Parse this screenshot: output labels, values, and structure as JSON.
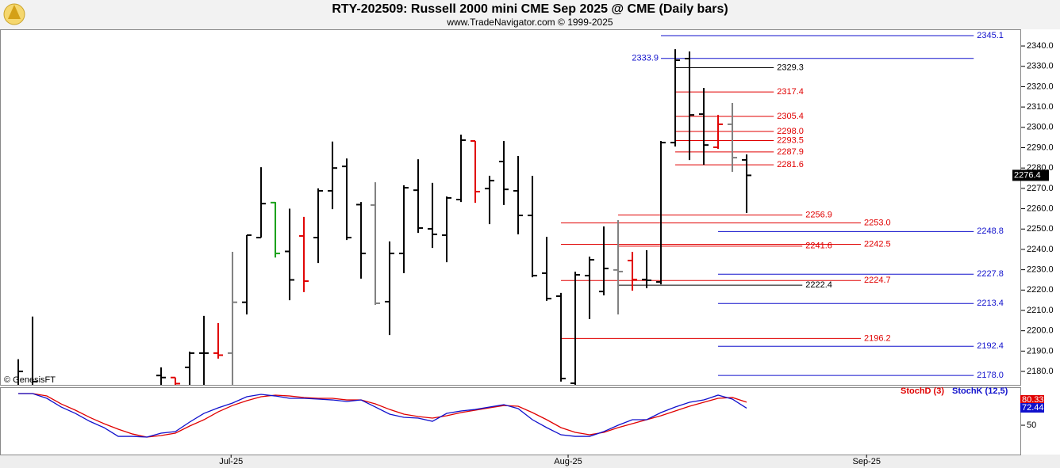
{
  "chart_data": [
    {
      "type": "ohlc",
      "title": "RTY-202509:  Russell 2000 mini CME Sep 2025 @ CME  (Daily bars)",
      "subtitle": "www.TradeNavigator.com © 1999-2025",
      "watermark": "© GenesisFT",
      "x": [
        0,
        1,
        10,
        11,
        12,
        13,
        14,
        15,
        16,
        17,
        18,
        19,
        20,
        21,
        22,
        23,
        24,
        25,
        26,
        27,
        28,
        29,
        30,
        31,
        32,
        33,
        34,
        35,
        36,
        37,
        38,
        39,
        40,
        41,
        42,
        43,
        44,
        45,
        46,
        47,
        48,
        49,
        50,
        51
      ],
      "open": [
        2170,
        2165,
        2178,
        2177,
        2182,
        2189,
        2189,
        2189,
        2214,
        2245.8,
        2263,
        2239,
        2246.6,
        2245.8,
        2268.8,
        2280.8,
        2262,
        2261.8,
        2214.3,
        2238,
        2269.1,
        2250.1,
        2247,
        2264.5,
        2293.3,
        2269.9,
        2283.2,
        2268.8,
        2256.7,
        2228.3,
        2217,
        2174.2,
        2227.1,
        2219.3,
        2229.9,
        2234.5,
        2225.2,
        2224,
        2292.5,
        2333.8,
        2306.5,
        2290.2,
        2301.5,
        2284
      ],
      "high": [
        2186,
        2207,
        2182,
        2177,
        2189.7,
        2207.3,
        2203.8,
        2238.8,
        2247,
        2280.4,
        2263.3,
        2260,
        2256,
        2270,
        2293,
        2284.7,
        2263.3,
        2273,
        2243.9,
        2271.5,
        2284.3,
        2272.7,
        2266,
        2296.4,
        2293.3,
        2276.2,
        2293.3,
        2285.9,
        2276.2,
        2246.2,
        2218.6,
        2229,
        2236.4,
        2251.3,
        2254.4,
        2238.8,
        2239.6,
        2293.3,
        2338.4,
        2337.3,
        2319.4,
        2306.1,
        2312,
        2286.7
      ],
      "low": [
        2165,
        2160,
        2170,
        2170,
        2170,
        2170,
        2186.3,
        2170,
        2208,
        2245.8,
        2236,
        2215,
        2219,
        2233.3,
        2259.8,
        2244.6,
        2225.6,
        2212.7,
        2197.9,
        2228.3,
        2248.1,
        2240.7,
        2233.7,
        2263.3,
        2262.9,
        2252.4,
        2261.8,
        2247.4,
        2226.3,
        2214.7,
        2175,
        2170,
        2205.7,
        2217.4,
        2208,
        2219.7,
        2220.9,
        2222.8,
        2290.6,
        2283.9,
        2281.6,
        2289.4,
        2278.1,
        2257.9
      ],
      "close": [
        2180,
        2175,
        2177,
        2174,
        2189,
        2189,
        2188,
        2214,
        2247,
        2262.5,
        2238,
        2225,
        2224.4,
        2268.8,
        2280,
        2245.8,
        2238,
        2213.5,
        2238,
        2270.3,
        2250.5,
        2247.4,
        2265.3,
        2293.7,
        2268.4,
        2273.8,
        2269.5,
        2256.7,
        2227.1,
        2215.8,
        2176.5,
        2227.5,
        2234.9,
        2230.6,
        2229.1,
        2225.2,
        2224.8,
        2292.5,
        2333,
        2306.1,
        2291.3,
        2301.5,
        2285.1,
        2276.4
      ],
      "colors": [
        "#000000",
        "#000000",
        "#000000",
        "#e00000",
        "#000000",
        "#000000",
        "#e00000",
        "#808080",
        "#000000",
        "#000000",
        "#1aa01a",
        "#000000",
        "#e00000",
        "#000000",
        "#000000",
        "#000000",
        "#000000",
        "#808080",
        "#000000",
        "#000000",
        "#000000",
        "#000000",
        "#000000",
        "#000000",
        "#e00000",
        "#000000",
        "#000000",
        "#000000",
        "#000000",
        "#000000",
        "#000000",
        "#000000",
        "#000000",
        "#000000",
        "#808080",
        "#e00000",
        "#000000",
        "#000000",
        "#000000",
        "#000000",
        "#000000",
        "#e00000",
        "#808080",
        "#000000"
      ],
      "xlim": [
        -1.28,
        70.22
      ],
      "ylim": [
        2173.4,
        2348.2
      ],
      "yticks": [
        {
          "value": 2180,
          "label": "2180.0"
        },
        {
          "value": 2190,
          "label": "2190.0"
        },
        {
          "value": 2200,
          "label": "2200.0"
        },
        {
          "value": 2210,
          "label": "2210.0"
        },
        {
          "value": 2220,
          "label": "2220.0"
        },
        {
          "value": 2230,
          "label": "2230.0"
        },
        {
          "value": 2240,
          "label": "2240.0"
        },
        {
          "value": 2250,
          "label": "2250.0"
        },
        {
          "value": 2260,
          "label": "2260.0"
        },
        {
          "value": 2270,
          "label": "2270.0"
        },
        {
          "value": 2280,
          "label": "2280.0"
        },
        {
          "value": 2290,
          "label": "2290.0"
        },
        {
          "value": 2300,
          "label": "2300.0"
        },
        {
          "value": 2310,
          "label": "2310.0"
        },
        {
          "value": 2320,
          "label": "2320.0"
        },
        {
          "value": 2330,
          "label": "2330.0"
        },
        {
          "value": 2340,
          "label": "2340.0"
        }
      ],
      "levels": [
        {
          "value": 2345.1,
          "label": "2345.1",
          "color": "#1010cc",
          "x0": 45,
          "x1": 66.9
        },
        {
          "value": 2333.9,
          "label": "2333.9",
          "color": "#1010cc",
          "x0": 45,
          "x1": 66.9,
          "label_side": "left"
        },
        {
          "value": 2329.3,
          "label": "2329.3",
          "color": "#000000",
          "x0": 46,
          "x1": 52.9
        },
        {
          "value": 2317.4,
          "label": "2317.4",
          "color": "#e00000",
          "x0": 46,
          "x1": 52.9
        },
        {
          "value": 2305.4,
          "label": "2305.4",
          "color": "#e00000",
          "x0": 46,
          "x1": 52.9
        },
        {
          "value": 2298.0,
          "label": "2298.0",
          "color": "#e00000",
          "x0": 46,
          "x1": 52.9
        },
        {
          "value": 2293.5,
          "label": "2293.5",
          "color": "#e00000",
          "x0": 46,
          "x1": 52.9
        },
        {
          "value": 2287.9,
          "label": "2287.9",
          "color": "#e00000",
          "x0": 46,
          "x1": 52.9
        },
        {
          "value": 2281.6,
          "label": "2281.6",
          "color": "#e00000",
          "x0": 46,
          "x1": 52.9
        },
        {
          "value": 2256.9,
          "label": "2256.9",
          "color": "#e00000",
          "x0": 42,
          "x1": 54.9
        },
        {
          "value": 2253.0,
          "label": "2253.0",
          "color": "#e00000",
          "x0": 38,
          "x1": 59
        },
        {
          "value": 2248.8,
          "label": "2248.8",
          "color": "#1010cc",
          "x0": 49,
          "x1": 66.9
        },
        {
          "value": 2242.5,
          "label": "2242.5",
          "color": "#e00000",
          "x0": 38,
          "x1": 59
        },
        {
          "value": 2241.6,
          "label": "2241.6",
          "color": "#e00000",
          "x0": 42,
          "x1": 54.9
        },
        {
          "value": 2227.8,
          "label": "2227.8",
          "color": "#1010cc",
          "x0": 49,
          "x1": 66.9
        },
        {
          "value": 2224.7,
          "label": "2224.7",
          "color": "#e00000",
          "x0": 38,
          "x1": 59
        },
        {
          "value": 2222.4,
          "label": "2222.4",
          "color": "#000000",
          "x0": 42,
          "x1": 54.9
        },
        {
          "value": 2213.4,
          "label": "2213.4",
          "color": "#1010cc",
          "x0": 49,
          "x1": 66.9
        },
        {
          "value": 2196.2,
          "label": "2196.2",
          "color": "#e00000",
          "x0": 38,
          "x1": 59
        },
        {
          "value": 2192.4,
          "label": "2192.4",
          "color": "#1010cc",
          "x0": 49,
          "x1": 66.9
        },
        {
          "value": 2178.0,
          "label": "2178.0",
          "color": "#1010cc",
          "x0": 49,
          "x1": 66.9
        }
      ]
    },
    {
      "type": "line",
      "x": [
        0,
        1,
        2,
        3,
        4,
        5,
        6,
        7,
        8,
        9,
        10,
        11,
        12,
        13,
        14,
        15,
        16,
        17,
        18,
        19,
        20,
        21,
        22,
        23,
        24,
        25,
        26,
        27,
        28,
        29,
        30,
        31,
        32,
        33,
        34,
        35,
        36,
        37,
        38,
        39,
        40,
        41,
        42,
        43,
        44,
        45,
        46,
        47,
        48,
        49,
        50,
        51
      ],
      "series": [
        {
          "name": "StochD (3)",
          "color": "#e00000",
          "values": [
            91.7,
            91.7,
            88.5,
            78.1,
            69.8,
            60.4,
            52.1,
            44.8,
            38.5,
            34.4,
            36.5,
            39.6,
            49,
            57.3,
            67.7,
            76,
            82.3,
            87.5,
            89.6,
            88.5,
            86.5,
            85.4,
            85.4,
            83.3,
            83.3,
            78.1,
            70.8,
            64.6,
            61.5,
            59.4,
            62.5,
            66.7,
            69.8,
            72.9,
            76,
            75,
            66.7,
            57.3,
            46.9,
            40.6,
            37.5,
            40.6,
            46.9,
            52.1,
            57.3,
            62.5,
            68.8,
            75,
            80.2,
            85.4,
            86.5,
            80.33
          ]
        },
        {
          "name": "StochK (12,5)",
          "color": "#1010cc",
          "values": [
            91.7,
            91.7,
            85.4,
            74,
            65.6,
            55.2,
            46.9,
            35.4,
            35.4,
            34.4,
            39.6,
            41.7,
            54.2,
            65.6,
            72.9,
            79.2,
            87.5,
            90.6,
            88.5,
            85.4,
            85.4,
            84.4,
            83.3,
            81.3,
            83.3,
            74,
            64.6,
            60.4,
            59.4,
            55.2,
            65.6,
            68.8,
            70.8,
            74,
            77.1,
            71.9,
            57.3,
            46.9,
            37.5,
            35.4,
            35.4,
            41.7,
            50,
            57.3,
            57.3,
            66.7,
            74,
            80.2,
            83.3,
            89.6,
            84.4,
            72.44
          ]
        }
      ],
      "xlim": [
        -1.28,
        70.22
      ],
      "ylim": [
        11.5,
        100
      ],
      "yticks": [
        50
      ],
      "xticks": [
        {
          "value": 14.9,
          "label": "Jul-25"
        },
        {
          "value": 38.5,
          "label": "Aug-25"
        },
        {
          "value": 59.4,
          "label": "Sep-25"
        }
      ]
    }
  ]
}
